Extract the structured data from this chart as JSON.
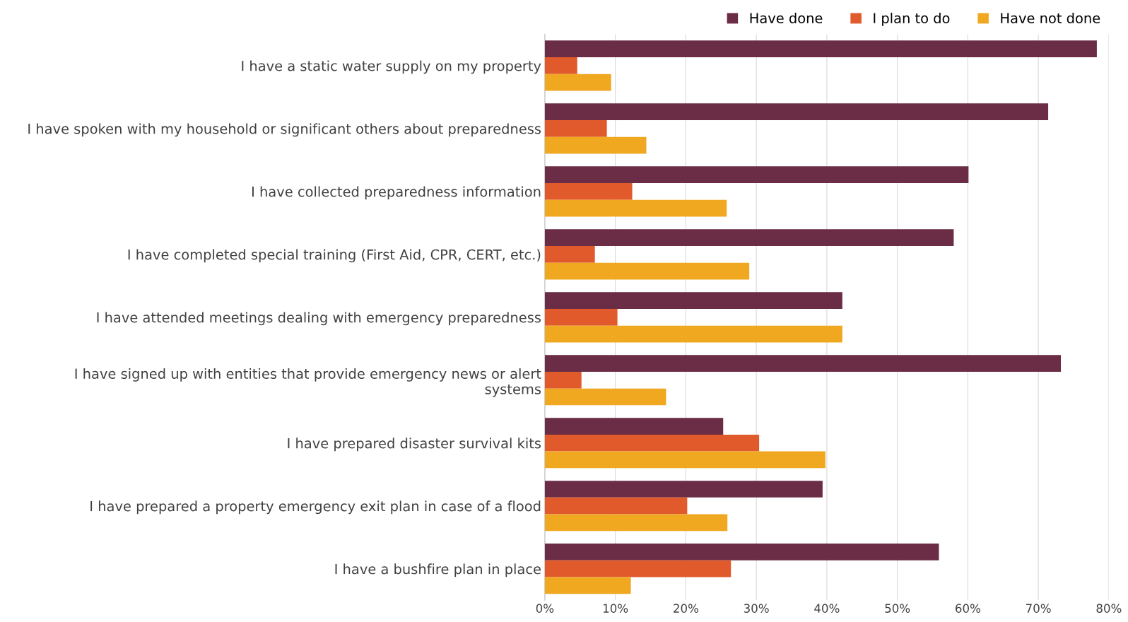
{
  "chart_data": {
    "type": "bar",
    "orientation": "horizontal",
    "categories": [
      "I have a static water supply on my property",
      "I have spoken with my household or significant others about preparedness",
      "I have collected preparedness information",
      "I have completed special training (First Aid, CPR, CERT, etc.)",
      "I have attended meetings dealing with emergency preparedness",
      "I have signed up with entities that provide emergency news or alert\nsystems",
      "I have prepared disaster survival kits",
      "I have prepared a property emergency exit plan in case of a flood",
      "I have a bushfire plan in place"
    ],
    "series": [
      {
        "name": "Have done",
        "color": "#6b2d46",
        "values": [
          78.3,
          71.4,
          60.1,
          58.0,
          42.2,
          73.2,
          25.3,
          39.4,
          55.9
        ]
      },
      {
        "name": "I plan to do",
        "color": "#e05a2b",
        "values": [
          4.6,
          8.8,
          12.4,
          7.1,
          10.3,
          5.2,
          30.4,
          20.2,
          26.4
        ]
      },
      {
        "name": "Have not done",
        "color": "#f0a820",
        "values": [
          9.4,
          14.4,
          25.8,
          29.0,
          42.2,
          17.2,
          39.8,
          25.9,
          12.2
        ]
      }
    ],
    "xlim": [
      0,
      80
    ],
    "xticks": [
      {
        "value": 0,
        "label": "0%"
      },
      {
        "value": 10,
        "label": "10%"
      },
      {
        "value": 20,
        "label": "20%"
      },
      {
        "value": 30,
        "label": "30%"
      },
      {
        "value": 40,
        "label": "40%"
      },
      {
        "value": 50,
        "label": "50%"
      },
      {
        "value": 60,
        "label": "60%"
      },
      {
        "value": 70,
        "label": "70%"
      },
      {
        "value": 80,
        "label": "80%"
      }
    ],
    "grid": "x",
    "legend": "top right"
  }
}
